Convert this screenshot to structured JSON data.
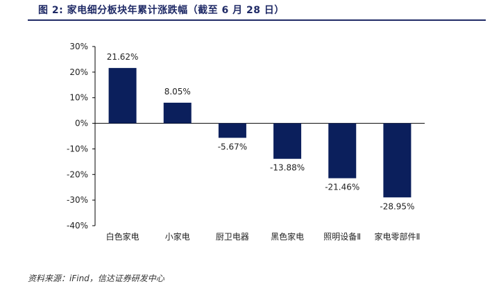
{
  "figure": {
    "title": "图  2:  家电细分板块年累计涨跌幅（截至 6 月 28 日）",
    "source": "资料来源：iFind，信达证券研发中心"
  },
  "chart_data": {
    "type": "bar",
    "categories": [
      "白色家电",
      "小家电",
      "厨卫电器",
      "黑色家电",
      "照明设备Ⅱ",
      "家电零部件Ⅱ"
    ],
    "values": [
      21.62,
      8.05,
      -5.67,
      -13.88,
      -21.46,
      -28.95
    ],
    "data_labels": [
      "21.62%",
      "8.05%",
      "-5.67%",
      "-13.88%",
      "-21.46%",
      "-28.95%"
    ],
    "yticks": [
      30,
      20,
      10,
      0,
      -10,
      -20,
      -30,
      -40
    ],
    "ytick_labels": [
      "30%",
      "20%",
      "10%",
      "0%",
      "-10%",
      "-20%",
      "-30%",
      "-40%"
    ],
    "ylim": [
      -40,
      30
    ],
    "bar_color": "#0b1f5c",
    "grid": false,
    "legend": "none"
  }
}
